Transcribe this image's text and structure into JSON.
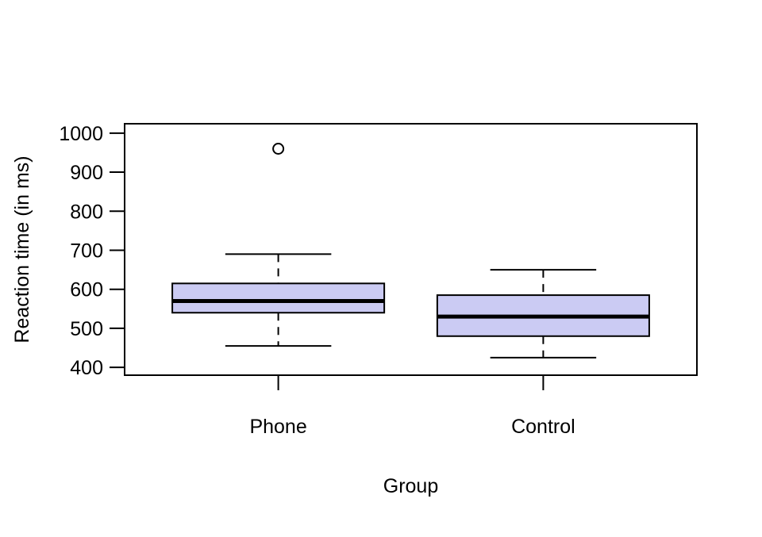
{
  "chart_data": {
    "type": "boxplot",
    "title": "",
    "xlabel": "Group",
    "ylabel": "Reaction time (in ms)",
    "categories": [
      "Phone",
      "Control"
    ],
    "yticks": [
      400,
      500,
      600,
      700,
      800,
      900,
      1000
    ],
    "ylim": [
      380,
      1024
    ],
    "grid": false,
    "legend": "none",
    "series": [
      {
        "name": "Phone",
        "whisker_low": 455,
        "q1": 540,
        "median": 570,
        "q3": 615,
        "whisker_high": 690,
        "outliers": [
          960
        ]
      },
      {
        "name": "Control",
        "whisker_low": 425,
        "q1": 480,
        "median": 530,
        "q3": 585,
        "whisker_high": 650,
        "outliers": []
      }
    ],
    "colors": {
      "box_fill": "#cbcbf3",
      "box_border": "#000000",
      "median_line": "#000000",
      "whisker": "#000000",
      "axis": "#000000",
      "background": "#ffffff"
    }
  }
}
